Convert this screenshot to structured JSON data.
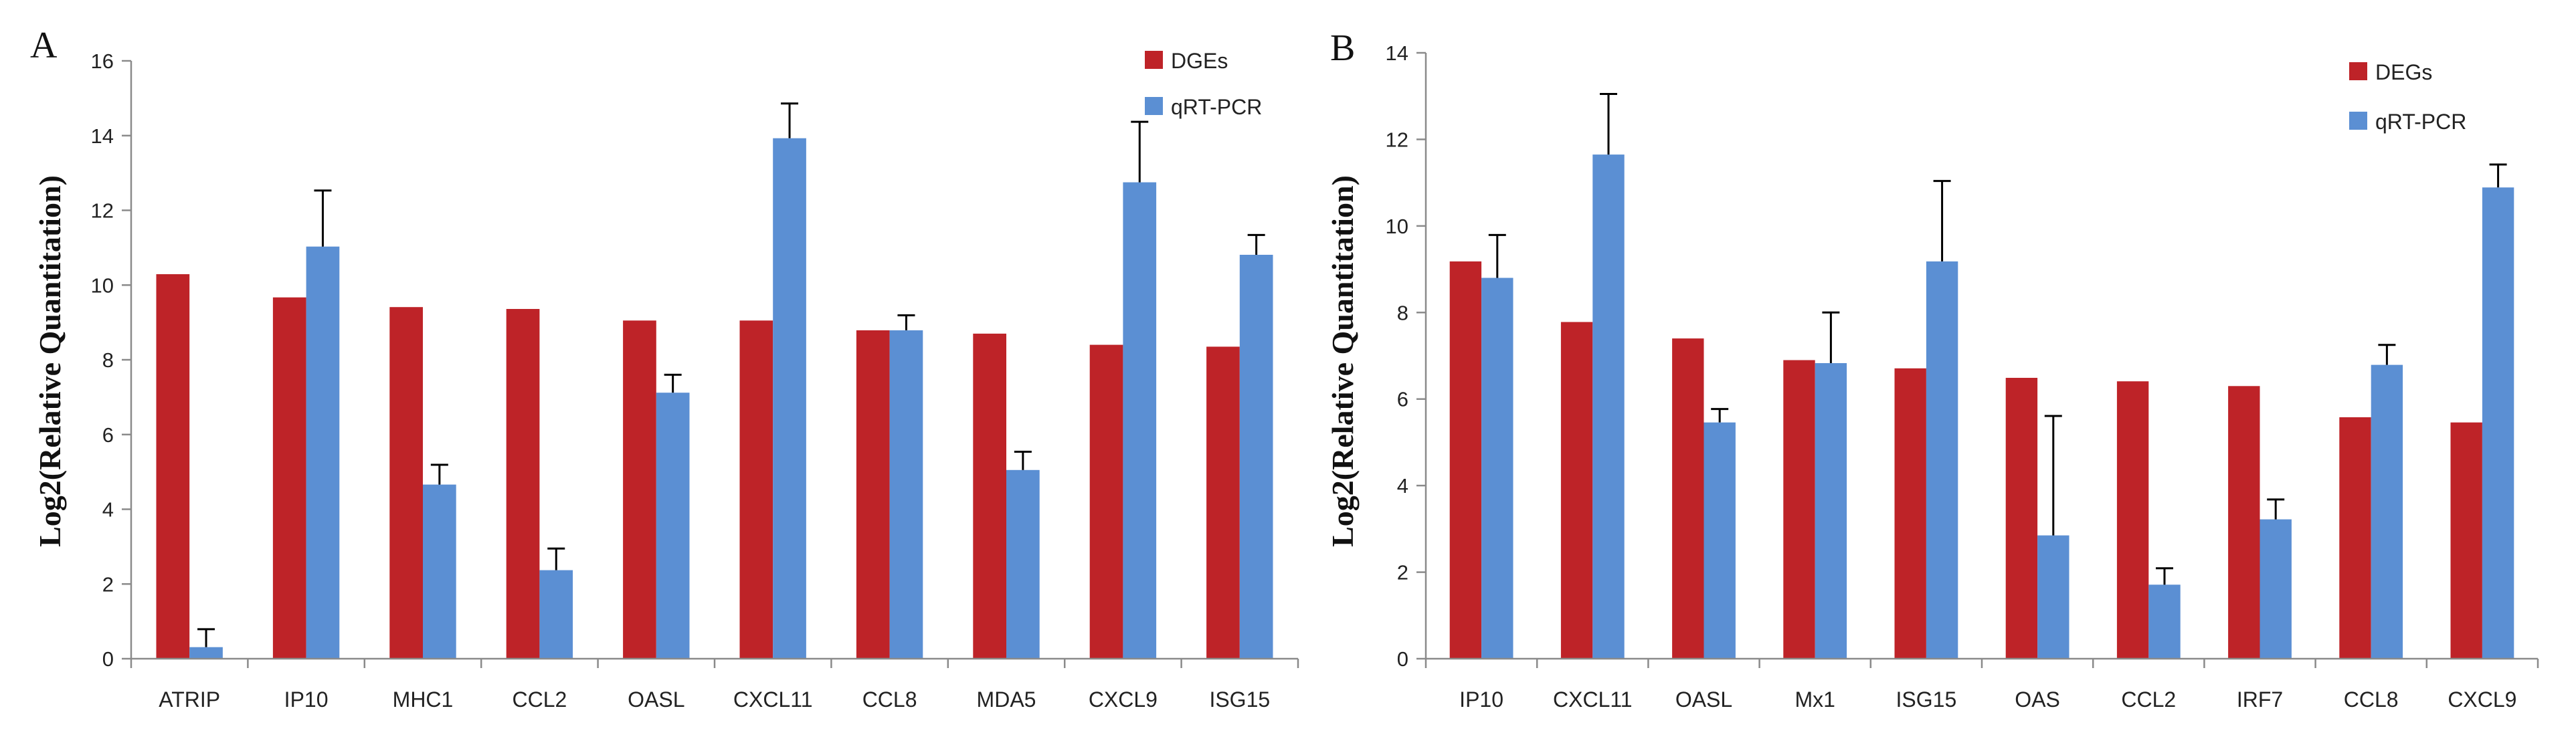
{
  "chart_data": [
    {
      "type": "bar",
      "panel_label": "A",
      "ylabel": "Log2(Relative Quantitation)",
      "ylim": [
        0,
        16
      ],
      "yticks": [
        0,
        2,
        4,
        6,
        8,
        10,
        12,
        14,
        16
      ],
      "grid": false,
      "legend_position": "top-right",
      "categories": [
        "ATRIP",
        "IP10",
        "MHC1",
        "CCL2",
        "OASL",
        "CXCL11",
        "CCL8",
        "MDA5",
        "CXCL9",
        "ISG15"
      ],
      "series": [
        {
          "name": "DGEs",
          "color": "#BE2328",
          "values": [
            10.29,
            9.67,
            9.41,
            9.36,
            9.05,
            9.05,
            8.79,
            8.7,
            8.4,
            8.35
          ]
        },
        {
          "name": "qRT-PCR",
          "color": "#5B8FD3",
          "values": [
            0.31,
            11.03,
            4.66,
            2.37,
            7.12,
            13.93,
            8.79,
            5.05,
            12.75,
            10.81
          ],
          "errors": [
            0.48,
            1.5,
            0.53,
            0.58,
            0.48,
            0.93,
            0.4,
            0.49,
            1.62,
            0.53
          ]
        }
      ]
    },
    {
      "type": "bar",
      "panel_label": "B",
      "ylabel": "Log2(Relative Quantitation)",
      "ylim": [
        0,
        14
      ],
      "yticks": [
        0,
        2,
        4,
        6,
        8,
        10,
        12,
        14
      ],
      "grid": false,
      "legend_position": "top-right",
      "categories": [
        "IP10",
        "CXCL11",
        "OASL",
        "Mx1",
        "ISG15",
        "OAS",
        "CCL2",
        "IRF7",
        "CCL8",
        "CXCL9"
      ],
      "series": [
        {
          "name": "DEGs",
          "color": "#BE2328",
          "values": [
            9.18,
            7.78,
            7.4,
            6.9,
            6.71,
            6.49,
            6.41,
            6.3,
            5.58,
            5.46
          ]
        },
        {
          "name": "qRT-PCR",
          "color": "#5B8FD3",
          "values": [
            8.8,
            11.65,
            5.46,
            6.83,
            9.18,
            2.85,
            1.71,
            3.22,
            6.79,
            10.89
          ],
          "errors": [
            0.99,
            1.4,
            0.31,
            1.17,
            1.86,
            2.76,
            0.38,
            0.46,
            0.46,
            0.53
          ]
        }
      ]
    }
  ]
}
